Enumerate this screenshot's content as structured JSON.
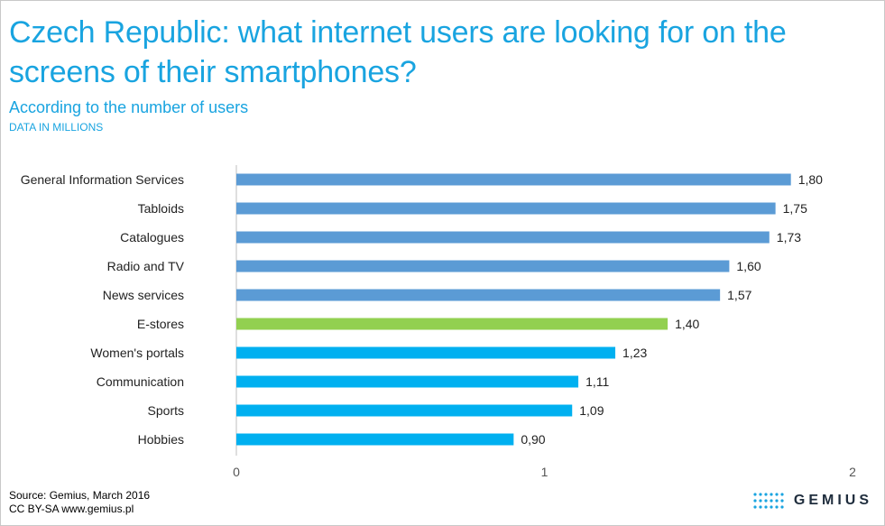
{
  "header": {
    "title": "Czech Republic: what internet users are looking for on the screens of their smartphones?",
    "subtitle": "According to the number of users",
    "unit_note": "DATA IN MILLIONS"
  },
  "footer": {
    "source": "Source: Gemius, March 2016",
    "license": "CC BY-SA www.gemius.pl",
    "logo_text": "GEMIUS"
  },
  "colors": {
    "steel_blue": "#5b9bd5",
    "bright_blue": "#00b0f0",
    "green": "#92d050",
    "axis_line": "#bfbfbf",
    "title": "#19a4e0"
  },
  "chart_data": {
    "type": "bar",
    "orientation": "horizontal",
    "categories": [
      "General Information Services",
      "Tabloids",
      "Catalogues",
      "Radio and TV",
      "News services",
      "E-stores",
      "Women's portals",
      "Communication",
      "Sports",
      "Hobbies"
    ],
    "values": [
      1.8,
      1.75,
      1.73,
      1.6,
      1.57,
      1.4,
      1.23,
      1.11,
      1.09,
      0.9
    ],
    "value_labels": [
      "1,80",
      "1,75",
      "1,73",
      "1,60",
      "1,57",
      "1,40",
      "1,23",
      "1,11",
      "1,09",
      "0,90"
    ],
    "bar_colors": [
      "#5b9bd5",
      "#5b9bd5",
      "#5b9bd5",
      "#5b9bd5",
      "#5b9bd5",
      "#92d050",
      "#00b0f0",
      "#00b0f0",
      "#00b0f0",
      "#00b0f0"
    ],
    "xlim": [
      0,
      2
    ],
    "xticks": [
      0,
      1,
      2
    ],
    "xtick_labels": [
      "0",
      "1",
      "2"
    ],
    "grid": false,
    "legend": "none"
  }
}
